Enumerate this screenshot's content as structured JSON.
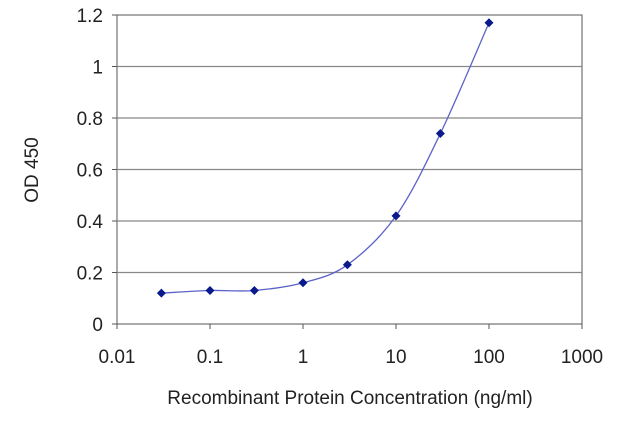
{
  "chart_data": {
    "type": "line",
    "title": "",
    "xlabel": "Recombinant Protein Concentration (ng/ml)",
    "ylabel": "OD 450",
    "x_scale": "log",
    "xlim": [
      0.01,
      1000
    ],
    "ylim": [
      0,
      1.2
    ],
    "x_ticks": [
      "0.01",
      "0.1",
      "1",
      "10",
      "100",
      "1000"
    ],
    "y_ticks": [
      "0",
      "0.2",
      "0.4",
      "0.6",
      "0.8",
      "1",
      "1.2"
    ],
    "grid": "horizontal",
    "series": [
      {
        "x": [
          0.03,
          0.1,
          0.3,
          1,
          3,
          10,
          30,
          100
        ],
        "y": [
          0.12,
          0.13,
          0.13,
          0.16,
          0.23,
          0.42,
          0.74,
          1.17
        ]
      }
    ],
    "colors": {
      "line": "#5b63c8",
      "marker": "#0a1a8c",
      "grid": "#888888",
      "axis": "#555555"
    }
  }
}
